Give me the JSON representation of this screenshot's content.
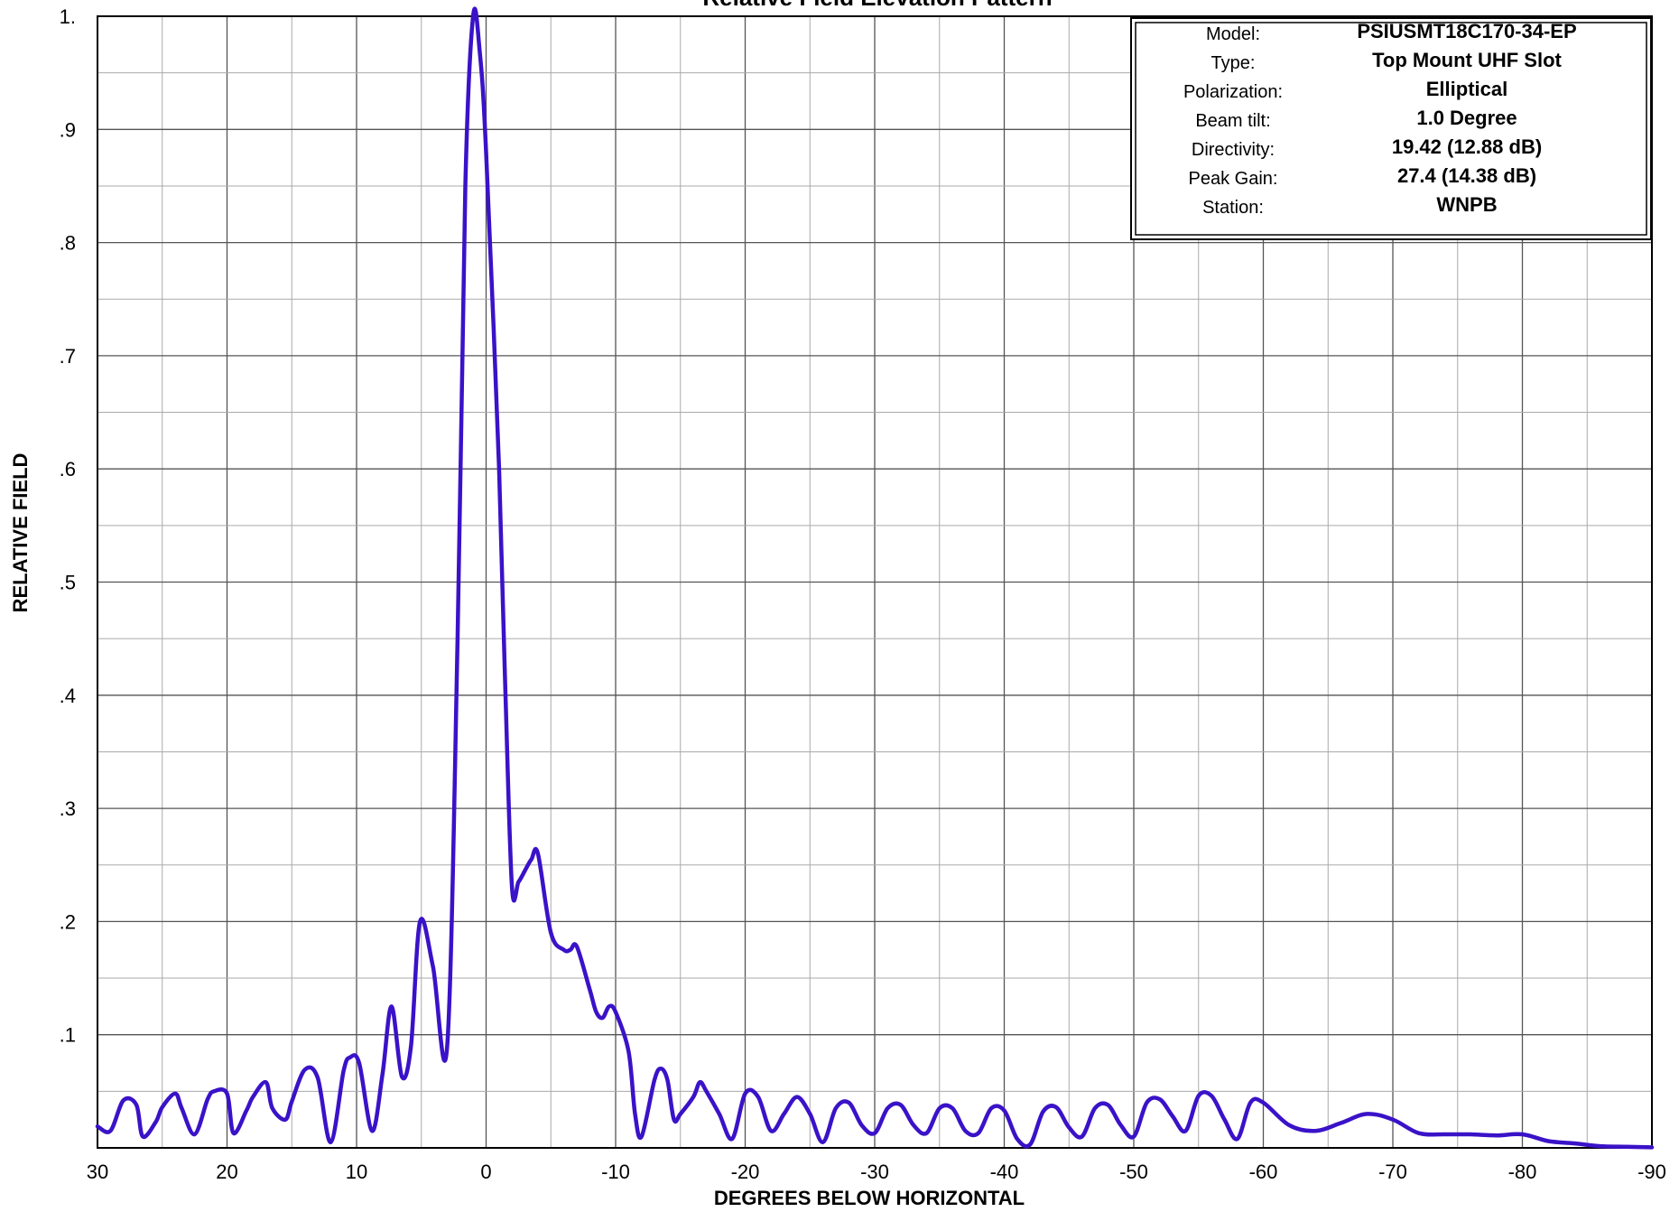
{
  "chart_data": {
    "type": "line",
    "title": "Relative Field Elevation Pattern",
    "xlabel": "DEGREES BELOW HORIZONTAL",
    "ylabel": "RELATIVE  FIELD",
    "xlim": [
      30,
      -90
    ],
    "ylim": [
      0,
      1
    ],
    "grid": true,
    "x_ticks": [
      30,
      20,
      10,
      0,
      -10,
      -20,
      -30,
      -40,
      -50,
      -60,
      -70,
      -80,
      -90
    ],
    "x_tick_labels": [
      "30",
      "20",
      "10",
      "0",
      "-10",
      "-20",
      "-30",
      "-40",
      "-50",
      "-60",
      "-70",
      "-80",
      "-90"
    ],
    "y_ticks": [
      0.1,
      0.2,
      0.3,
      0.4,
      0.5,
      0.6,
      0.7,
      0.8,
      0.9,
      1.0
    ],
    "y_tick_labels": [
      ".1",
      ".2",
      ".3",
      ".4",
      ".5",
      ".6",
      ".7",
      ".8",
      ".9",
      "1."
    ],
    "line_color": "#3a12c8",
    "series": [
      {
        "x": [
          30,
          29,
          28,
          27,
          26.5,
          25.5,
          25,
          24,
          23.5,
          22.5,
          21.5,
          21,
          20,
          19.5,
          18.5,
          18,
          17,
          16.5,
          15.5,
          15,
          14,
          13,
          12,
          11,
          10.5,
          9.8,
          8.8,
          8,
          7.3,
          6.5,
          5.8,
          5.1,
          4.1,
          3,
          2.2,
          1.6,
          1,
          0.5,
          0,
          -1,
          -1.5,
          -2,
          -2.5,
          -3,
          -3.5,
          -4,
          -5,
          -6,
          -6.5,
          -7,
          -8,
          -8.5,
          -9,
          -9.5,
          -10,
          -11,
          -11.5,
          -12,
          -13,
          -13.5,
          -14,
          -14.5,
          -15,
          -16,
          -16.5,
          -17,
          -18,
          -19,
          -20,
          -21,
          -22,
          -23,
          -24,
          -25,
          -26,
          -27,
          -28,
          -29,
          -30,
          -31,
          -32,
          -33,
          -34,
          -35,
          -36,
          -37,
          -38,
          -39,
          -40,
          -41,
          -42,
          -43,
          -44,
          -45,
          -46,
          -47,
          -48,
          -49,
          -50,
          -51,
          -52,
          -53,
          -54,
          -55,
          -56,
          -57,
          -58,
          -59,
          -60,
          -62,
          -64,
          -66,
          -68,
          -70,
          -72,
          -74,
          -76,
          -78,
          -80,
          -82,
          -84,
          -86,
          -88,
          -90
        ],
        "y": [
          0.019,
          0.015,
          0.042,
          0.038,
          0.01,
          0.023,
          0.036,
          0.048,
          0.035,
          0.012,
          0.043,
          0.05,
          0.048,
          0.013,
          0.033,
          0.045,
          0.058,
          0.035,
          0.025,
          0.041,
          0.069,
          0.062,
          0.005,
          0.068,
          0.08,
          0.075,
          0.015,
          0.065,
          0.125,
          0.063,
          0.09,
          0.2,
          0.16,
          0.09,
          0.45,
          0.85,
          1.0,
          0.97,
          0.88,
          0.6,
          0.4,
          0.23,
          0.235,
          0.245,
          0.255,
          0.26,
          0.19,
          0.175,
          0.175,
          0.178,
          0.14,
          0.12,
          0.115,
          0.125,
          0.12,
          0.085,
          0.03,
          0.01,
          0.06,
          0.07,
          0.06,
          0.025,
          0.03,
          0.045,
          0.058,
          0.05,
          0.03,
          0.008,
          0.048,
          0.045,
          0.015,
          0.03,
          0.045,
          0.03,
          0.005,
          0.035,
          0.04,
          0.02,
          0.013,
          0.035,
          0.038,
          0.02,
          0.013,
          0.035,
          0.035,
          0.015,
          0.013,
          0.035,
          0.033,
          0.008,
          0.003,
          0.032,
          0.036,
          0.018,
          0.01,
          0.035,
          0.038,
          0.02,
          0.01,
          0.04,
          0.043,
          0.028,
          0.015,
          0.046,
          0.046,
          0.025,
          0.008,
          0.04,
          0.04,
          0.02,
          0.015,
          0.022,
          0.03,
          0.025,
          0.013,
          0.012,
          0.012,
          0.011,
          0.012,
          0.006,
          0.004,
          0.0015,
          0.001,
          0.0005
        ]
      }
    ]
  },
  "info_box": {
    "rows": [
      {
        "label": "Model:",
        "value": "PSIUSMT18C170-34-EP"
      },
      {
        "label": "Type:",
        "value": "Top Mount UHF Slot"
      },
      {
        "label": "Polarization:",
        "value": "Elliptical"
      },
      {
        "label": "Beam tilt:",
        "value": "1.0 Degree"
      },
      {
        "label": "Directivity:",
        "value": "19.42 (12.88 dB)"
      },
      {
        "label": "Peak Gain:",
        "value": "27.4 (14.38 dB)"
      },
      {
        "label": "Station:",
        "value": "WNPB"
      }
    ]
  }
}
